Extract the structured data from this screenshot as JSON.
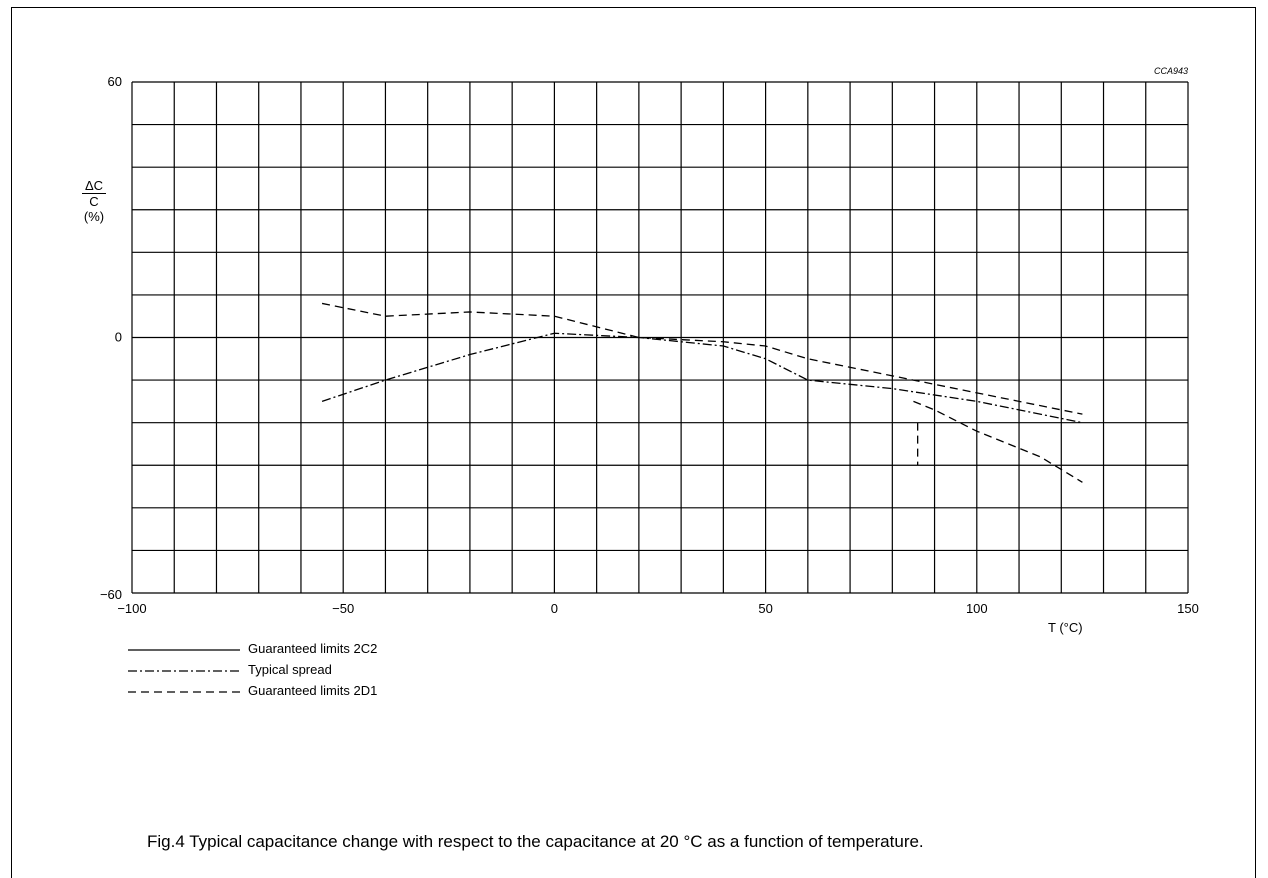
{
  "figure_id": "CCA943",
  "caption": "Fig.4  Typical capacitance change with respect to the capacitance at 20 °C as a function of temperature.",
  "chart_data": {
    "type": "line",
    "xlim": [
      -100,
      150
    ],
    "ylim": [
      -60,
      60
    ],
    "x_ticks": [
      -100,
      -50,
      0,
      50,
      100,
      150
    ],
    "y_ticks": [
      -60,
      0,
      60
    ],
    "grid": true,
    "ylabel": {
      "numerator": "ΔC",
      "denominator": "C",
      "unit": "(%)"
    },
    "xlabel": "T  (°C)",
    "legend_position": "bottom-left",
    "series": [
      {
        "name": "Guaranteed limits 2C2",
        "style": "solid",
        "x": [],
        "y": []
      },
      {
        "name": "Typical spread",
        "style": "dash-dot",
        "x": [
          -55,
          -40,
          -20,
          0,
          20,
          40,
          50,
          60,
          80,
          100,
          125
        ],
        "y": [
          -15,
          -10,
          -4,
          1,
          0,
          -2,
          -5,
          -10,
          -12,
          -15,
          -20
        ]
      },
      {
        "name": "Guaranteed limits 2D1",
        "style": "dashed",
        "x": [
          -55,
          -40,
          -20,
          0,
          20,
          40,
          50,
          60,
          80,
          85,
          100,
          125
        ],
        "y": [
          8,
          5,
          6,
          5,
          0,
          -1,
          -2,
          -5,
          -9,
          -10,
          -13,
          -18
        ],
        "extra_x": [
          85,
          90,
          100,
          115,
          125
        ],
        "extra_y": [
          -15,
          -17,
          -22,
          -28,
          -34
        ],
        "tick_x": 86,
        "tick_y": [
          -20,
          -30
        ]
      }
    ]
  }
}
